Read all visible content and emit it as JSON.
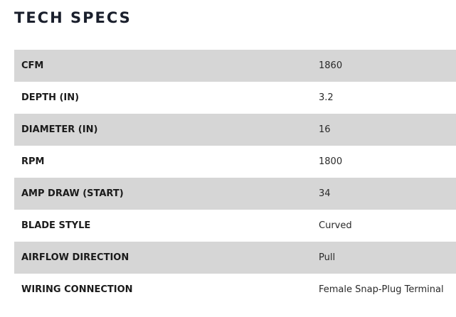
{
  "section": {
    "title": "TECH SPECS"
  },
  "specs": [
    {
      "label": "CFM",
      "value": "1860"
    },
    {
      "label": "DEPTH (IN)",
      "value": "3.2"
    },
    {
      "label": "DIAMETER (IN)",
      "value": "16"
    },
    {
      "label": "RPM",
      "value": "1800"
    },
    {
      "label": "AMP DRAW (START)",
      "value": "34"
    },
    {
      "label": "BLADE STYLE",
      "value": "Curved"
    },
    {
      "label": "AIRFLOW DIRECTION",
      "value": "Pull"
    },
    {
      "label": "WIRING CONNECTION",
      "value": "Female Snap-Plug Terminal"
    }
  ],
  "colors": {
    "row_shade": "#d6d6d6",
    "title": "#1a1f2c"
  }
}
